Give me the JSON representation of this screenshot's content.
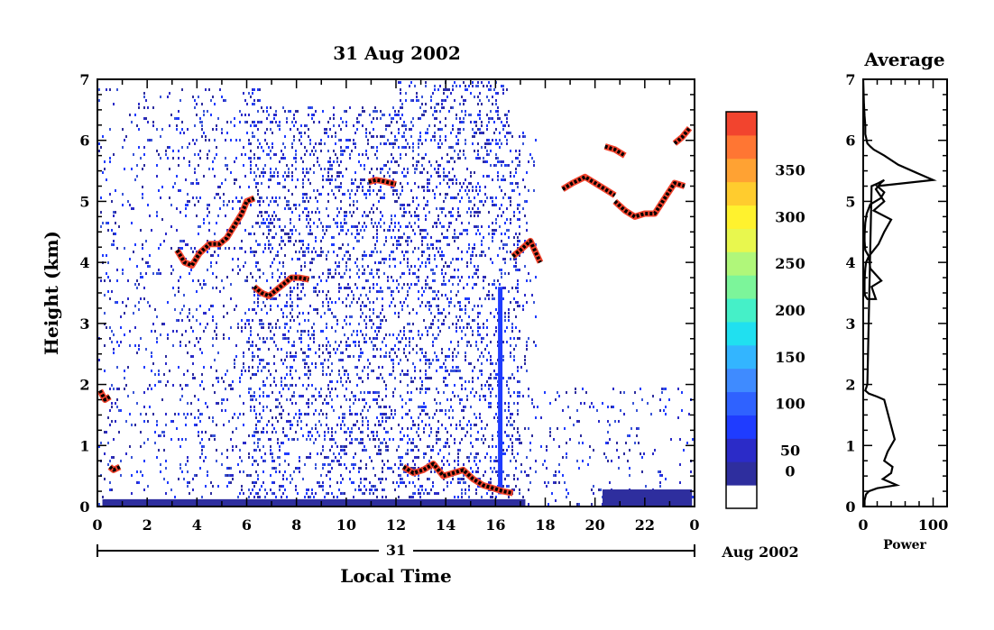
{
  "chart_data": [
    {
      "type": "heatmap",
      "title": "31 Aug 2002",
      "xlabel": "Local Time",
      "ylabel": "Height (km)",
      "xlim": [
        0,
        24
      ],
      "ylim": [
        0,
        7
      ],
      "x_ticks": [
        "0",
        "2",
        "4",
        "6",
        "8",
        "10",
        "12",
        "14",
        "16",
        "18",
        "20",
        "22",
        "0"
      ],
      "y_ticks": [
        "0",
        "1",
        "2",
        "3",
        "4",
        "5",
        "6",
        "7"
      ],
      "date_bar_label": "31",
      "date_suffix": "Aug 2002",
      "colorbar": {
        "min": 0,
        "max": 375,
        "tick_labels": [
          "0",
          "50",
          "100",
          "150",
          "200",
          "250",
          "300",
          "350"
        ],
        "tick_values": [
          0,
          50,
          100,
          150,
          200,
          250,
          300,
          350
        ],
        "colors": [
          "#ffffff",
          "#2e2e9e",
          "#2b2bc8",
          "#1f3cff",
          "#2f62ff",
          "#3f8bff",
          "#33b5ff",
          "#20e0f0",
          "#45f0c8",
          "#7cf59a",
          "#b0f77a",
          "#e8f74e",
          "#fff22e",
          "#ffcc2e",
          "#ffa233",
          "#ff7633",
          "#f2442e"
        ]
      },
      "strong_echo_layers": [
        {
          "t": [
            0.1,
            0.3,
            0.5
          ],
          "h": [
            1.9,
            1.75,
            1.8
          ]
        },
        {
          "t": [
            0.5,
            0.65,
            0.9
          ],
          "h": [
            0.65,
            0.6,
            0.65
          ]
        },
        {
          "t": [
            3.2,
            3.5,
            3.8,
            4.1,
            4.5,
            4.9,
            5.2,
            5.5,
            5.8,
            6.0,
            6.3
          ],
          "h": [
            4.2,
            4.0,
            3.95,
            4.15,
            4.3,
            4.3,
            4.4,
            4.6,
            4.8,
            5.0,
            5.05
          ]
        },
        {
          "t": [
            6.3,
            6.6,
            6.9,
            7.2,
            7.5,
            7.8,
            8.1,
            8.5
          ],
          "h": [
            3.6,
            3.5,
            3.45,
            3.55,
            3.65,
            3.75,
            3.75,
            3.72
          ]
        },
        {
          "t": [
            10.9,
            11.2,
            11.5,
            11.8,
            12.0
          ],
          "h": [
            5.32,
            5.35,
            5.33,
            5.3,
            5.28
          ]
        },
        {
          "t": [
            12.3,
            12.7,
            13.1,
            13.5,
            13.9,
            14.3,
            14.7,
            15.1,
            15.5,
            15.9,
            16.3,
            16.7
          ],
          "h": [
            0.65,
            0.55,
            0.6,
            0.7,
            0.5,
            0.55,
            0.6,
            0.45,
            0.35,
            0.3,
            0.25,
            0.22
          ]
        },
        {
          "t": [
            16.7,
            17.0,
            17.4,
            17.8
          ],
          "h": [
            4.1,
            4.2,
            4.35,
            4.0
          ]
        },
        {
          "t": [
            18.7,
            19.1,
            19.6,
            20.0,
            20.4,
            20.8
          ],
          "h": [
            5.2,
            5.3,
            5.4,
            5.3,
            5.2,
            5.1
          ]
        },
        {
          "t": [
            20.8,
            21.2,
            21.6,
            22.0,
            22.4,
            22.8,
            23.2,
            23.6
          ],
          "h": [
            5.0,
            4.85,
            4.75,
            4.8,
            4.8,
            5.05,
            5.3,
            5.25
          ]
        },
        {
          "t": [
            20.4,
            20.8,
            21.2
          ],
          "h": [
            5.9,
            5.85,
            5.75
          ]
        },
        {
          "t": [
            23.2,
            23.5,
            23.8
          ],
          "h": [
            5.95,
            6.05,
            6.2
          ]
        }
      ]
    },
    {
      "type": "line",
      "title": "Average",
      "xlabel": "Power",
      "xlim": [
        0,
        120
      ],
      "ylim": [
        0,
        7
      ],
      "x_ticks": [
        "0",
        "100"
      ],
      "y_ticks": [
        "0",
        "1",
        "2",
        "3",
        "4",
        "5",
        "6",
        "7"
      ],
      "x": [
        0,
        1,
        2,
        3,
        3,
        4,
        6,
        10,
        15,
        30,
        50,
        80,
        100,
        60,
        20,
        30,
        25,
        10,
        5,
        3,
        2,
        2,
        3,
        8,
        4,
        3,
        2,
        2,
        3,
        6,
        18,
        12,
        26,
        10,
        8,
        22,
        30,
        40,
        15,
        30,
        18,
        25,
        30,
        22,
        12,
        6,
        3,
        8,
        20,
        30,
        45,
        35,
        30,
        42,
        40,
        28,
        48,
        20,
        8,
        4,
        3,
        2,
        2
      ],
      "y": [
        7.0,
        6.6,
        6.4,
        6.25,
        6.1,
        6.05,
        5.95,
        5.9,
        5.85,
        5.75,
        5.6,
        5.45,
        5.35,
        5.3,
        5.25,
        5.15,
        5.05,
        4.95,
        4.8,
        4.65,
        4.45,
        4.35,
        4.2,
        4.1,
        4.0,
        3.9,
        3.7,
        3.5,
        3.45,
        3.4,
        3.4,
        3.6,
        3.7,
        3.9,
        4.1,
        4.3,
        4.5,
        4.7,
        4.85,
        5.0,
        5.2,
        5.3,
        5.35,
        5.3,
        5.25,
        2.0,
        1.9,
        1.85,
        1.8,
        1.75,
        1.1,
        0.9,
        0.75,
        0.65,
        0.55,
        0.45,
        0.35,
        0.3,
        0.25,
        0.2,
        0.15,
        0.1,
        0.0
      ]
    }
  ]
}
